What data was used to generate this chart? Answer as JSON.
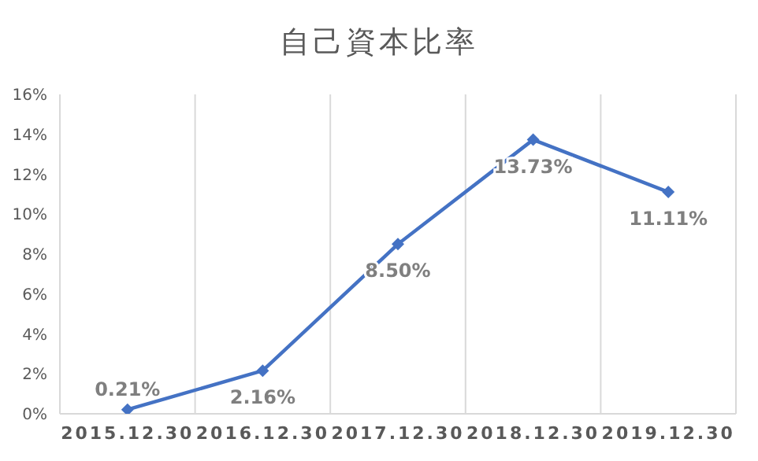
{
  "chart_data": {
    "type": "line",
    "title": "自己資本比率",
    "categories": [
      "2015.12.30",
      "2016.12.30",
      "2017.12.30",
      "2018.12.30",
      "2019.12.30"
    ],
    "series": [
      {
        "color": "#4472c4",
        "values": [
          0.21,
          2.16,
          8.5,
          13.73,
          11.11
        ],
        "value_labels": [
          "0.21%",
          "2.16%",
          "8.50%",
          "13.73%",
          "11.11%"
        ]
      }
    ],
    "ylim": [
      0,
      16
    ],
    "yticks": [
      {
        "value": 0,
        "label": "0%"
      },
      {
        "value": 2,
        "label": "2%"
      },
      {
        "value": 4,
        "label": "4%"
      },
      {
        "value": 6,
        "label": "6%"
      },
      {
        "value": 8,
        "label": "8%"
      },
      {
        "value": 10,
        "label": "10%"
      },
      {
        "value": 12,
        "label": "12%"
      },
      {
        "value": 14,
        "label": "14%"
      },
      {
        "value": 16,
        "label": "16%"
      }
    ],
    "grid": "x",
    "marker": "diamond",
    "line_style": "solid"
  }
}
